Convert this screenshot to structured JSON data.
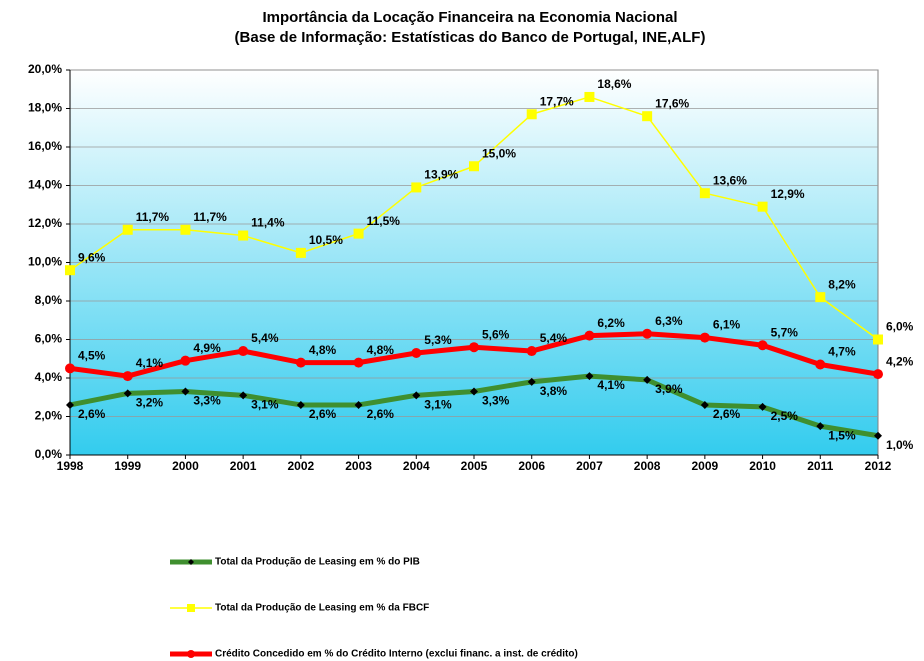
{
  "chart_data": {
    "type": "line",
    "title": "Importância da Locação Financeira na Economia Nacional",
    "subtitle": "(Base de Informação: Estatísticas do Banco de Portugal, INE,ALF)",
    "categories": [
      "1998",
      "1999",
      "2000",
      "2001",
      "2002",
      "2003",
      "2004",
      "2005",
      "2006",
      "2007",
      "2008",
      "2009",
      "2010",
      "2011",
      "2012"
    ],
    "ylim": [
      0,
      20
    ],
    "yticks": [
      {
        "value": 0,
        "label": "0,0%"
      },
      {
        "value": 2,
        "label": "2,0%"
      },
      {
        "value": 4,
        "label": "4,0%"
      },
      {
        "value": 6,
        "label": "6,0%"
      },
      {
        "value": 8,
        "label": "8,0%"
      },
      {
        "value": 10,
        "label": "10,0%"
      },
      {
        "value": 12,
        "label": "12,0%"
      },
      {
        "value": 14,
        "label": "14,0%"
      },
      {
        "value": 16,
        "label": "16,0%"
      },
      {
        "value": 18,
        "label": "18,0%"
      },
      {
        "value": 20,
        "label": "20,0%"
      }
    ],
    "grid": true,
    "series": [
      {
        "name": "Total da Produção de Leasing em % do PIB",
        "color": "#3f8f2f",
        "marker": "diamond",
        "values": [
          2.6,
          3.2,
          3.3,
          3.1,
          2.6,
          2.6,
          3.1,
          3.3,
          3.8,
          4.1,
          3.9,
          2.6,
          2.5,
          1.5,
          1.0
        ],
        "value_labels": [
          "2,6%",
          "3,2%",
          "3,3%",
          "3,1%",
          "2,6%",
          "2,6%",
          "3,1%",
          "3,3%",
          "3,8%",
          "4,1%",
          "3,9%",
          "2,6%",
          "2,5%",
          "1,5%",
          "1,0%"
        ]
      },
      {
        "name": "Total da Produção de Leasing em % da FBCF",
        "color": "#ffff00",
        "marker": "square",
        "values": [
          9.6,
          11.7,
          11.7,
          11.4,
          10.5,
          11.5,
          13.9,
          15.0,
          17.7,
          18.6,
          17.6,
          13.6,
          12.9,
          8.2,
          6.0
        ],
        "value_labels": [
          "9,6%",
          "11,7%",
          "11,7%",
          "11,4%",
          "10,5%",
          "11,5%",
          "13,9%",
          "15,0%",
          "17,7%",
          "18,6%",
          "17,6%",
          "13,6%",
          "12,9%",
          "8,2%",
          "6,0%"
        ]
      },
      {
        "name": "Crédito Concedido em % do Crédito Interno (exclui financ. a inst. de crédito)",
        "color": "#ff0000",
        "marker": "circle",
        "values": [
          4.5,
          4.1,
          4.9,
          5.4,
          4.8,
          4.8,
          5.3,
          5.6,
          5.4,
          6.2,
          6.3,
          6.1,
          5.7,
          4.7,
          4.2
        ],
        "value_labels": [
          "4,5%",
          "4,1%",
          "4,9%",
          "5,4%",
          "4,8%",
          "4,8%",
          "5,3%",
          "5,6%",
          "5,4%",
          "6,2%",
          "6,3%",
          "6,1%",
          "5,7%",
          "4,7%",
          "4,2%"
        ]
      }
    ]
  }
}
